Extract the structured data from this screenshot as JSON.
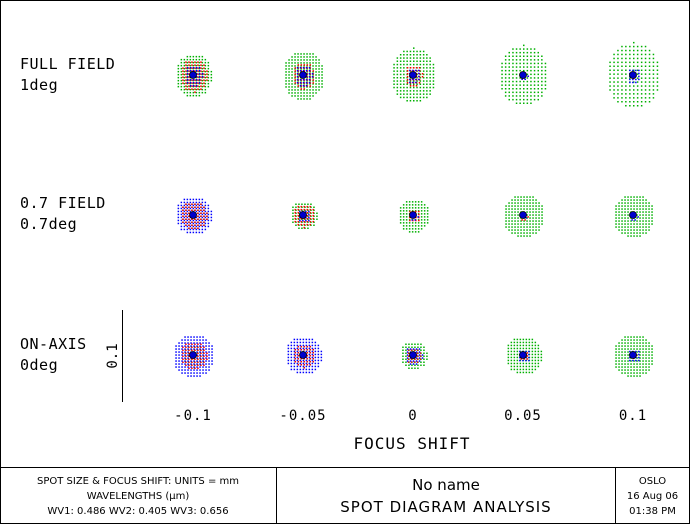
{
  "chart_data": {
    "type": "scatter",
    "title": "SPOT DIAGRAM ANALYSIS",
    "subtitle": "No name",
    "xlabel": "FOCUS SHIFT",
    "x": [
      -0.1,
      -0.05,
      0,
      0.05,
      0.1
    ],
    "x_tick_labels": [
      "-0.1",
      "-0.05",
      "0",
      "0.05",
      "0.1"
    ],
    "scale_bar_label": "0.1",
    "units": "mm",
    "fields": [
      {
        "name": "FULL FIELD",
        "angle": "1deg"
      },
      {
        "name": "0.7 FIELD",
        "angle": "0.7deg"
      },
      {
        "name": "ON-AXIS",
        "angle": "0deg"
      }
    ],
    "wavelengths_um": {
      "WV1": 0.486,
      "WV2": 0.405,
      "WV3": 0.656
    },
    "series_colors": {
      "WV1": "#0000ff",
      "WV2": "#00b000",
      "WV3": "#ff0000"
    },
    "approx_spot_radii_mm": {
      "FULL FIELD": {
        "WV2": [
          0.04,
          0.045,
          0.05,
          0.055,
          0.06
        ],
        "WV3": [
          0.03,
          0.025,
          0.02,
          0.01,
          0.006
        ],
        "WV1": [
          0.02,
          0.02,
          0.015,
          0.01,
          0.015
        ]
      },
      "0.7 FIELD": {
        "WV2": [
          0.03,
          0.03,
          0.035,
          0.045,
          0.045
        ],
        "WV3": [
          0.03,
          0.025,
          0.015,
          0.01,
          0.006
        ],
        "WV1": [
          0.04,
          0.015,
          0.01,
          0.008,
          0.01
        ]
      },
      "ON-AXIS": {
        "WV2": [
          0.025,
          0.025,
          0.03,
          0.04,
          0.045
        ],
        "WV3": [
          0.03,
          0.025,
          0.018,
          0.012,
          0.007
        ],
        "WV1": [
          0.045,
          0.04,
          0.02,
          0.015,
          0.015
        ]
      }
    }
  },
  "footer": {
    "left_line1": "SPOT SIZE & FOCUS SHIFT: UNITS = mm",
    "left_line2": "WAVELENGTHS (μm)",
    "left_line3": "WV1: 0.486 WV2: 0.405 WV3: 0.656",
    "mid_line1": "No name",
    "mid_line2": "SPOT DIAGRAM ANALYSIS",
    "right_line1": "OSLO",
    "right_line2": "16 Aug 06",
    "right_line3": "01:38 PM"
  }
}
